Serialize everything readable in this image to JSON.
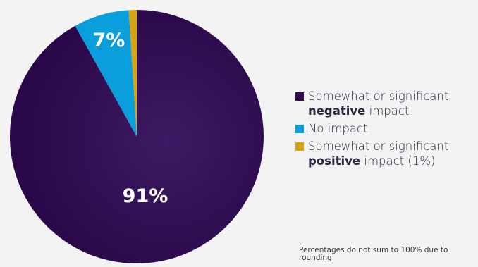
{
  "chart_data": {
    "type": "pie",
    "slices": [
      {
        "label_pre": "Somewhat or significant",
        "label_bold": "negative",
        "label_post": "impact",
        "value": 91,
        "value_label": "91%",
        "color": "#2e0a4f"
      },
      {
        "label_pre": "",
        "label_bold": "",
        "label_post": "No impact",
        "value": 7,
        "value_label": "7%",
        "color": "#0a9fdc"
      },
      {
        "label_pre": "Somewhat or significant",
        "label_bold": "positive",
        "label_post": "impact (1%)",
        "value": 1,
        "value_label": "",
        "color": "#d6a313"
      }
    ],
    "legend_placement": "right",
    "note": "Percentages do not sum to 100% due to rounding"
  }
}
